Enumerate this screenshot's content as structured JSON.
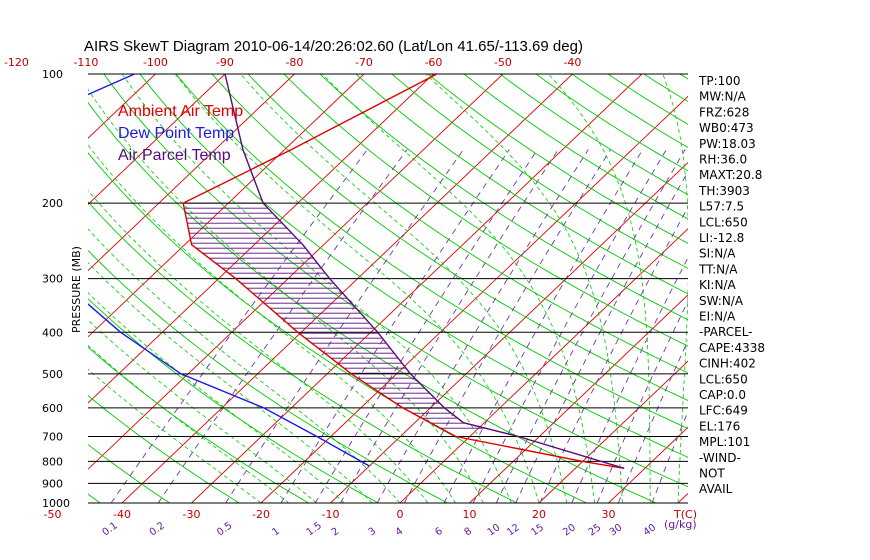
{
  "chart_data": {
    "type": "line",
    "title": "AIRS SkewT Diagram 2010-06-14/20:26:02.60 (Lat/Lon 41.65/-113.69 deg)",
    "ylabel": "PRESSURE (MB)",
    "y_scale": "log",
    "ylim": [
      1000,
      100
    ],
    "y_ticks": [
      100,
      200,
      300,
      400,
      500,
      600,
      700,
      800,
      900,
      1000
    ],
    "top_temp_ticks": [
      -120,
      -110,
      -100,
      -90,
      -80,
      -70,
      -60,
      -50,
      -40
    ],
    "bottom_temp_ticks": [
      -50,
      -40,
      -30,
      -20,
      -10,
      0,
      10,
      20,
      30
    ],
    "bottom_temp_unit": "T(C)",
    "mixing_ratio_labels": [
      "0.1",
      "0.2",
      "0.5",
      "1",
      "1.5",
      "2",
      "3",
      "4",
      "6",
      "8",
      "10",
      "12",
      "15",
      "20",
      "25",
      "30",
      "40"
    ],
    "mixing_ratio_unit": "(g/kg)",
    "legend": [
      {
        "label": "Ambient Air Temp",
        "color": "#e00000"
      },
      {
        "label": "Dew Point Temp",
        "color": "#1a1ae6"
      },
      {
        "label": "Air Parcel Temp",
        "color": "#5a0a7a"
      }
    ],
    "series": [
      {
        "name": "Ambient Air Temp",
        "color": "#e00000",
        "points": [
          {
            "p": 100,
            "t": -59.5
          },
          {
            "p": 150,
            "t": -69
          },
          {
            "p": 200,
            "t": -76.5
          },
          {
            "p": 250,
            "t": -69
          },
          {
            "p": 300,
            "t": -57.5
          },
          {
            "p": 400,
            "t": -40.5
          },
          {
            "p": 500,
            "t": -26.5
          },
          {
            "p": 600,
            "t": -14
          },
          {
            "p": 700,
            "t": -2
          },
          {
            "p": 800,
            "t": 20
          },
          {
            "p": 830,
            "t": 27
          }
        ]
      },
      {
        "name": "Dew Point Temp",
        "color": "#1a1ae6",
        "points": [
          {
            "p": 100,
            "t": -103
          },
          {
            "p": 120,
            "t": -109
          },
          {
            "p": 150,
            "t": -111
          },
          {
            "p": 200,
            "t": -106
          },
          {
            "p": 250,
            "t": -95
          },
          {
            "p": 300,
            "t": -83
          },
          {
            "p": 400,
            "t": -66
          },
          {
            "p": 500,
            "t": -51
          },
          {
            "p": 600,
            "t": -34
          },
          {
            "p": 700,
            "t": -22
          },
          {
            "p": 820,
            "t": -10
          }
        ]
      },
      {
        "name": "Air Parcel Temp",
        "color": "#5a0a7a",
        "points": [
          {
            "p": 100,
            "t": -90
          },
          {
            "p": 150,
            "t": -76
          },
          {
            "p": 200,
            "t": -65
          },
          {
            "p": 250,
            "t": -53
          },
          {
            "p": 300,
            "t": -44
          },
          {
            "p": 400,
            "t": -29
          },
          {
            "p": 500,
            "t": -18
          },
          {
            "p": 600,
            "t": -8
          },
          {
            "p": 650,
            "t": -3
          },
          {
            "p": 700,
            "t": 7
          },
          {
            "p": 830,
            "t": 27
          }
        ]
      }
    ],
    "cape_shading": {
      "p_top": 200,
      "p_bottom": 680,
      "color": "#5a0a7a"
    }
  },
  "indices": [
    "TP:100",
    "MW:N/A",
    "FRZ:628",
    "WB0:473",
    "PW:18.03",
    "RH:36.0",
    "MAXT:20.8",
    "TH:3903",
    "L57:7.5",
    "LCL:650",
    "LI:-12.8",
    "SI:N/A",
    "TT:N/A",
    "KI:N/A",
    "SW:N/A",
    "EI:N/A",
    "-PARCEL-",
    "CAPE:4338",
    "CINH:402",
    "LCL:650",
    "CAP:0.0",
    "LFC:649",
    "EL:176",
    "MPL:101",
    "-WIND-",
    " NOT",
    " AVAIL"
  ],
  "colors": {
    "isotherm": "#e00000",
    "dry_adiabat": "#00cc00",
    "moist_adiabat": "#00cc00",
    "mixing_ratio": "#6a3aa0",
    "tick_text": "#c00000",
    "mixing_text": "#6a1aa0"
  }
}
